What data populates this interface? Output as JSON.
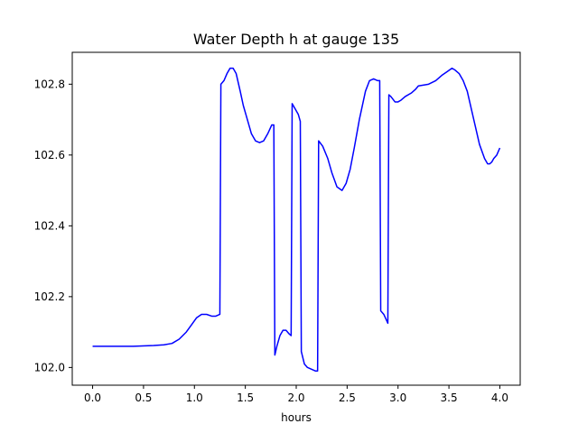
{
  "chart_data": {
    "type": "line",
    "title": "Water Depth h at gauge 135",
    "xlabel": "hours",
    "ylabel": "",
    "xlim": [
      -0.2,
      4.2
    ],
    "ylim": [
      101.95,
      102.89
    ],
    "xticks": [
      0.0,
      0.5,
      1.0,
      1.5,
      2.0,
      2.5,
      3.0,
      3.5,
      4.0
    ],
    "xtick_labels": [
      "0.0",
      "0.5",
      "1.0",
      "1.5",
      "2.0",
      "2.5",
      "3.0",
      "3.5",
      "4.0"
    ],
    "yticks": [
      102.0,
      102.2,
      102.4,
      102.6,
      102.8
    ],
    "ytick_labels": [
      "102.0",
      "102.2",
      "102.4",
      "102.6",
      "102.8"
    ],
    "grid": false,
    "series": [
      {
        "color": "#0000ff",
        "x": [
          0.0,
          0.2,
          0.4,
          0.6,
          0.7,
          0.78,
          0.85,
          0.92,
          0.97,
          1.02,
          1.07,
          1.12,
          1.17,
          1.21,
          1.25,
          1.26,
          1.29,
          1.32,
          1.35,
          1.38,
          1.41,
          1.45,
          1.48,
          1.52,
          1.56,
          1.6,
          1.64,
          1.68,
          1.72,
          1.76,
          1.78,
          1.79,
          1.81,
          1.84,
          1.87,
          1.9,
          1.93,
          1.95,
          1.96,
          1.99,
          2.02,
          2.04,
          2.05,
          2.08,
          2.11,
          2.15,
          2.19,
          2.21,
          2.22,
          2.26,
          2.31,
          2.35,
          2.4,
          2.45,
          2.49,
          2.53,
          2.57,
          2.62,
          2.68,
          2.72,
          2.76,
          2.8,
          2.82,
          2.83,
          2.86,
          2.9,
          2.91,
          2.93,
          2.97,
          3.0,
          3.03,
          3.07,
          3.13,
          3.17,
          3.2,
          3.3,
          3.37,
          3.43,
          3.48,
          3.53,
          3.56,
          3.6,
          3.64,
          3.68,
          3.72,
          3.76,
          3.8,
          3.85,
          3.88,
          3.9,
          3.92,
          3.94,
          3.97,
          4.0
        ],
        "values": [
          102.06,
          102.06,
          102.06,
          102.062,
          102.064,
          102.068,
          102.08,
          102.1,
          102.12,
          102.14,
          102.15,
          102.15,
          102.145,
          102.145,
          102.15,
          102.8,
          102.81,
          102.83,
          102.845,
          102.845,
          102.83,
          102.78,
          102.74,
          102.7,
          102.66,
          102.64,
          102.635,
          102.64,
          102.66,
          102.685,
          102.685,
          102.035,
          102.06,
          102.09,
          102.105,
          102.105,
          102.095,
          102.09,
          102.745,
          102.73,
          102.715,
          102.695,
          102.045,
          102.01,
          102.0,
          101.995,
          101.99,
          101.99,
          102.64,
          102.625,
          102.59,
          102.55,
          102.51,
          102.5,
          102.52,
          102.56,
          102.62,
          102.7,
          102.78,
          102.81,
          102.815,
          102.81,
          102.81,
          102.16,
          102.15,
          102.125,
          102.77,
          102.765,
          102.75,
          102.75,
          102.755,
          102.765,
          102.775,
          102.785,
          102.795,
          102.8,
          102.81,
          102.825,
          102.835,
          102.845,
          102.84,
          102.83,
          102.81,
          102.78,
          102.73,
          102.68,
          102.63,
          102.59,
          102.575,
          102.575,
          102.58,
          102.59,
          102.6,
          102.62
        ]
      }
    ]
  }
}
